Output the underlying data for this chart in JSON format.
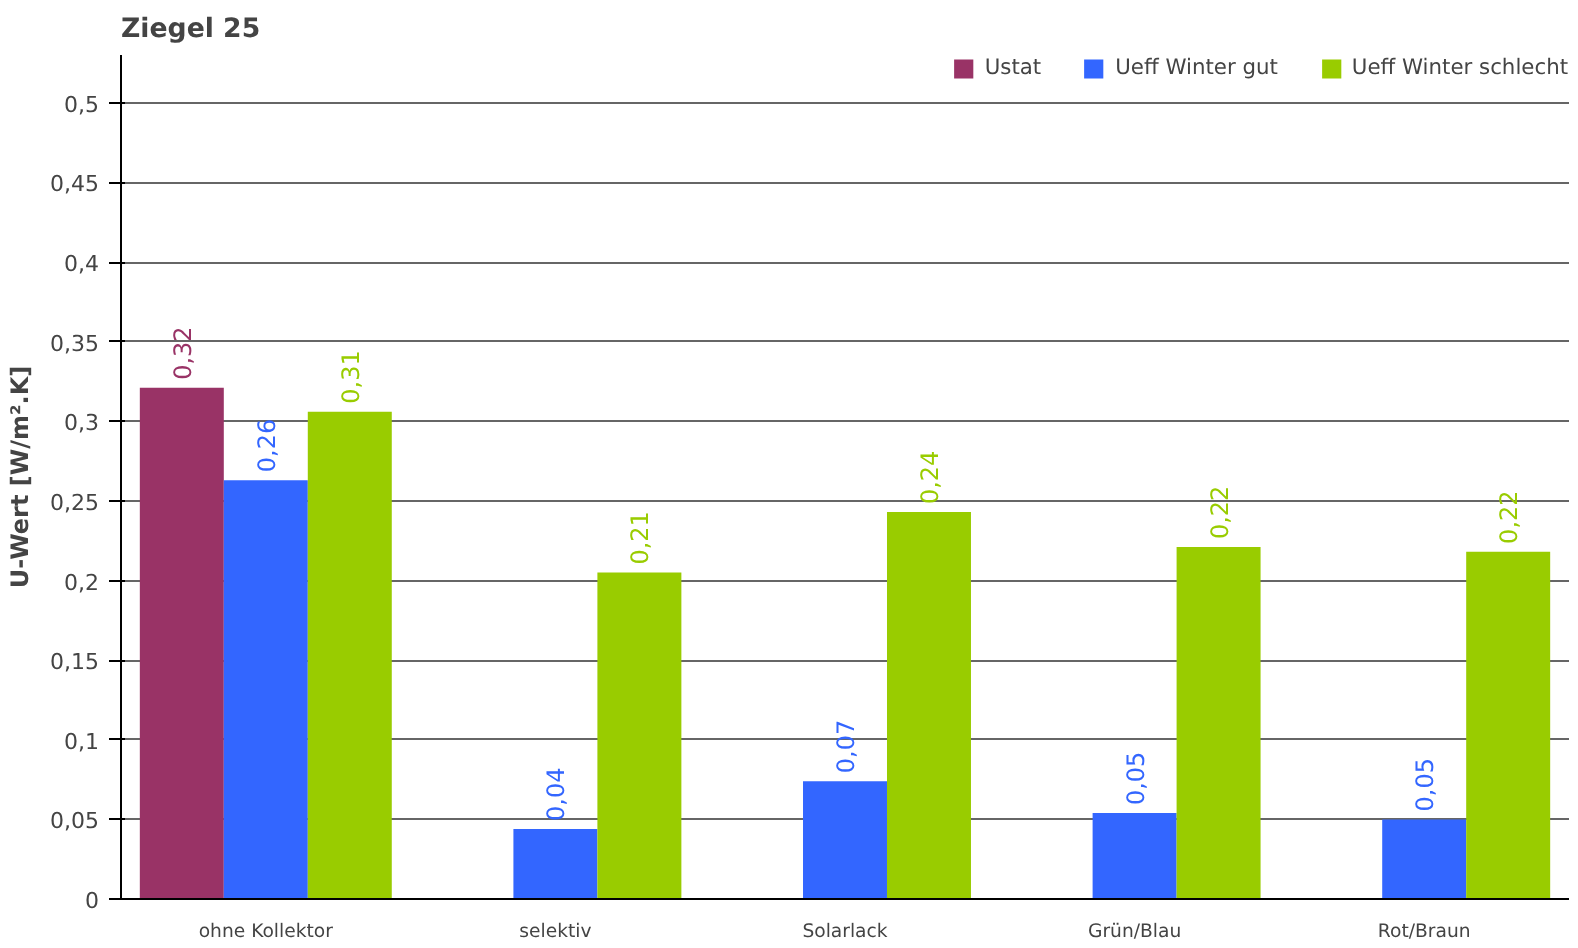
{
  "chart_data": {
    "type": "bar",
    "title": "Ziegel 25",
    "ylabel": "U-Wert [W/m².K]",
    "categories": [
      "ohne Kollektor",
      "selektiv",
      "Solarlack",
      "Grün/Blau",
      "Rot/Braun"
    ],
    "series": [
      {
        "name": "Ustat",
        "color": "#993366",
        "values": [
          0.321,
          null,
          null,
          null,
          null
        ],
        "value_labels": [
          "0,32",
          null,
          null,
          null,
          null
        ]
      },
      {
        "name": "Ueff Winter gut",
        "color": "#3366ff",
        "values": [
          0.263,
          0.044,
          0.074,
          0.054,
          0.05
        ],
        "value_labels": [
          "0,26",
          "0,04",
          "0,07",
          "0,05",
          "0,05"
        ]
      },
      {
        "name": "Ueff Winter schlecht",
        "color": "#99cc00",
        "values": [
          0.306,
          0.205,
          0.243,
          0.221,
          0.218
        ],
        "value_labels": [
          "0,31",
          "0,21",
          "0,24",
          "0,22",
          "0,22"
        ]
      }
    ],
    "ylim": [
      0,
      0.5
    ],
    "yticks": [
      0,
      {
        "value": 0.05,
        "label": "0,05"
      },
      {
        "value": 0.1,
        "label": "0,1"
      },
      {
        "value": 0.15,
        "label": "0,15"
      },
      {
        "value": 0.2,
        "label": "0,2"
      },
      {
        "value": 0.25,
        "label": "0,25"
      },
      {
        "value": 0.3,
        "label": "0,3"
      },
      {
        "value": 0.35,
        "label": "0,35"
      },
      {
        "value": 0.4,
        "label": "0,4"
      },
      {
        "value": 0.45,
        "label": "0,45"
      },
      {
        "value": 0.5,
        "label": "0,5"
      }
    ],
    "grid": "y",
    "legend": "top right"
  }
}
